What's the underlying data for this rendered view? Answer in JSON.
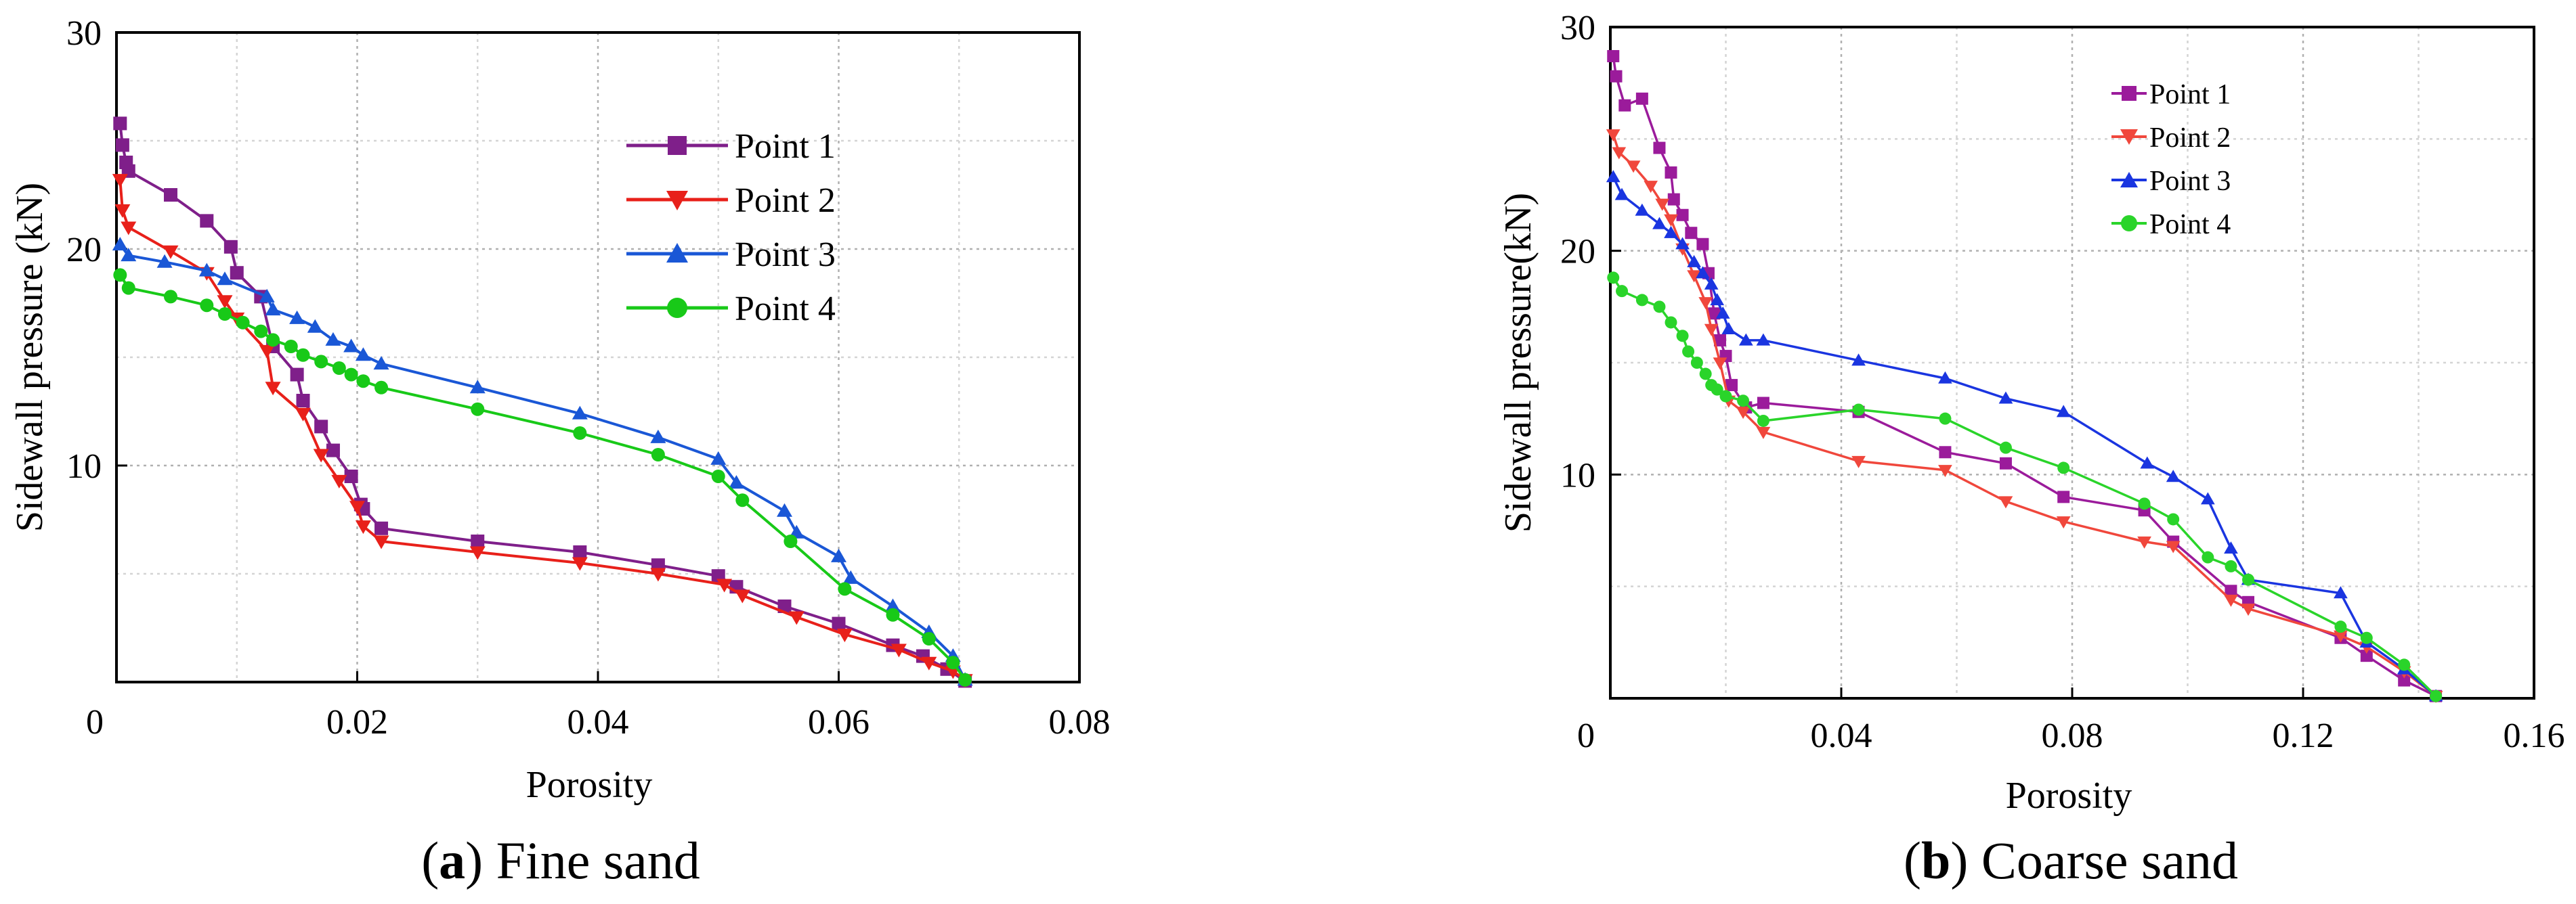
{
  "chart_data": [
    {
      "type": "line",
      "caption": {
        "open": "(",
        "letter": "a",
        "close": ")",
        "text": " Fine sand"
      },
      "xlabel": "Porosity",
      "ylabel": "Sidewall pressure (kN)",
      "xlim": [
        0,
        0.08
      ],
      "ylim": [
        0,
        30
      ],
      "xticks": [
        0,
        0.02,
        0.04,
        0.06,
        0.08
      ],
      "xtick_labels": [
        "0",
        "0.02",
        "0.04",
        "0.06",
        "0.08"
      ],
      "yticks": [
        10,
        20,
        30
      ],
      "ytick_labels": [
        "10",
        "20",
        "30"
      ],
      "grid": true,
      "grid_style": "dotted",
      "legend": "upper-middle",
      "series": [
        {
          "name": "Point 1",
          "color": "#7f1f8a",
          "marker": "square",
          "x": [
            0.0003,
            0.0005,
            0.0008,
            0.001,
            0.0045,
            0.0075,
            0.0095,
            0.01,
            0.012,
            0.013,
            0.015,
            0.0155,
            0.017,
            0.018,
            0.0195,
            0.0203,
            0.0205,
            0.022,
            0.03,
            0.0385,
            0.045,
            0.05,
            0.0515,
            0.0555,
            0.06,
            0.0645,
            0.067,
            0.069,
            0.0705
          ],
          "y": [
            25.8,
            24.8,
            24.0,
            23.6,
            22.5,
            21.3,
            20.1,
            18.9,
            17.8,
            15.5,
            14.2,
            13.0,
            11.8,
            10.7,
            9.5,
            8.2,
            8.0,
            7.1,
            6.5,
            6.0,
            5.4,
            4.9,
            4.4,
            3.5,
            2.7,
            1.7,
            1.2,
            0.6,
            0.05
          ]
        },
        {
          "name": "Point 2",
          "color": "#e8201a",
          "marker": "triangle-down",
          "x": [
            0.0003,
            0.0005,
            0.001,
            0.0045,
            0.0075,
            0.009,
            0.01,
            0.0125,
            0.013,
            0.0155,
            0.017,
            0.0185,
            0.02,
            0.0205,
            0.022,
            0.03,
            0.0385,
            0.045,
            0.0505,
            0.052,
            0.0565,
            0.0605,
            0.065,
            0.0675,
            0.0695,
            0.0705
          ],
          "y": [
            23.2,
            21.8,
            21.0,
            19.9,
            18.9,
            17.6,
            16.8,
            15.3,
            13.6,
            12.4,
            10.5,
            9.3,
            8.1,
            7.2,
            6.5,
            6.0,
            5.5,
            5.0,
            4.5,
            4.0,
            3.0,
            2.2,
            1.5,
            0.9,
            0.5,
            0.1
          ]
        },
        {
          "name": "Point 3",
          "color": "#1a57d6",
          "marker": "triangle-up",
          "x": [
            0.0003,
            0.001,
            0.004,
            0.0075,
            0.009,
            0.0125,
            0.013,
            0.015,
            0.0165,
            0.018,
            0.0195,
            0.0205,
            0.022,
            0.03,
            0.0385,
            0.045,
            0.05,
            0.0515,
            0.0555,
            0.0565,
            0.06,
            0.061,
            0.0645,
            0.0675,
            0.0695,
            0.0705
          ],
          "y": [
            20.2,
            19.7,
            19.4,
            19.0,
            18.6,
            17.8,
            17.2,
            16.8,
            16.4,
            15.8,
            15.5,
            15.1,
            14.7,
            13.6,
            12.4,
            11.3,
            10.3,
            9.2,
            7.9,
            6.9,
            5.8,
            4.8,
            3.5,
            2.3,
            1.2,
            0.1
          ]
        },
        {
          "name": "Point 4",
          "color": "#18c918",
          "marker": "circle",
          "x": [
            0.0003,
            0.001,
            0.0045,
            0.0075,
            0.009,
            0.0105,
            0.012,
            0.013,
            0.0145,
            0.0155,
            0.017,
            0.0185,
            0.0195,
            0.0205,
            0.022,
            0.03,
            0.0385,
            0.045,
            0.05,
            0.052,
            0.056,
            0.0605,
            0.0645,
            0.0675,
            0.0695,
            0.0705
          ],
          "y": [
            18.8,
            18.2,
            17.8,
            17.4,
            17.0,
            16.6,
            16.2,
            15.8,
            15.5,
            15.1,
            14.8,
            14.5,
            14.2,
            13.9,
            13.6,
            12.6,
            11.5,
            10.5,
            9.5,
            8.4,
            6.5,
            4.3,
            3.1,
            2.0,
            0.9,
            0.1
          ]
        }
      ]
    },
    {
      "type": "line",
      "caption": {
        "open": "(",
        "letter": "b",
        "close": ")",
        "text": " Coarse sand"
      },
      "xlabel": "Porosity",
      "ylabel": "Sidewall pressure(kN)",
      "xlim": [
        0,
        0.16
      ],
      "ylim": [
        0,
        30
      ],
      "xticks": [
        0,
        0.04,
        0.08,
        0.12,
        0.16
      ],
      "xtick_labels": [
        "0",
        "0.04",
        "0.08",
        "0.12",
        "0.16"
      ],
      "yticks": [
        10,
        20,
        30
      ],
      "ytick_labels": [
        "10",
        "20",
        "30"
      ],
      "grid": true,
      "grid_style": "dotted",
      "legend": "upper-left",
      "series": [
        {
          "name": "Point 1",
          "color": "#9b1b9b",
          "marker": "square",
          "x": [
            0.0005,
            0.001,
            0.0025,
            0.0055,
            0.0085,
            0.0105,
            0.011,
            0.0125,
            0.014,
            0.016,
            0.017,
            0.018,
            0.019,
            0.02,
            0.021,
            0.0235,
            0.0265,
            0.043,
            0.058,
            0.0685,
            0.0785,
            0.0925,
            0.0975,
            0.1075,
            0.1105,
            0.1265,
            0.131,
            0.1375,
            0.143
          ],
          "y": [
            28.7,
            27.8,
            26.5,
            26.8,
            24.6,
            23.5,
            22.3,
            21.6,
            20.8,
            20.3,
            19.0,
            17.2,
            16.0,
            15.3,
            14.0,
            13.0,
            13.2,
            12.8,
            11.0,
            10.5,
            9.0,
            8.4,
            7.0,
            4.8,
            4.3,
            2.7,
            1.9,
            0.8,
            0.1
          ]
        },
        {
          "name": "Point 2",
          "color": "#f0473c",
          "marker": "triangle-down",
          "x": [
            0.0005,
            0.0015,
            0.004,
            0.007,
            0.009,
            0.0105,
            0.0125,
            0.0145,
            0.0165,
            0.0175,
            0.019,
            0.0205,
            0.023,
            0.0265,
            0.043,
            0.058,
            0.0685,
            0.0785,
            0.0925,
            0.0975,
            0.1075,
            0.1105,
            0.1265,
            0.131,
            0.1375,
            0.143
          ],
          "y": [
            25.2,
            24.4,
            23.8,
            22.9,
            22.1,
            21.4,
            20.1,
            18.9,
            17.7,
            16.5,
            15.0,
            13.3,
            12.8,
            11.9,
            10.6,
            10.2,
            8.8,
            7.9,
            7.0,
            6.8,
            4.4,
            4.0,
            2.8,
            2.3,
            1.2,
            0.1
          ]
        },
        {
          "name": "Point 3",
          "color": "#1a35e0",
          "marker": "triangle-up",
          "x": [
            0.0005,
            0.002,
            0.0055,
            0.0085,
            0.0105,
            0.0125,
            0.0145,
            0.016,
            0.0175,
            0.0185,
            0.0195,
            0.0205,
            0.0235,
            0.0265,
            0.043,
            0.058,
            0.0685,
            0.0785,
            0.093,
            0.0975,
            0.1035,
            0.1075,
            0.1105,
            0.1265,
            0.131,
            0.1375,
            0.143
          ],
          "y": [
            23.3,
            22.5,
            21.8,
            21.2,
            20.8,
            20.3,
            19.5,
            19.0,
            18.5,
            17.8,
            17.2,
            16.5,
            16.0,
            16.0,
            15.1,
            14.3,
            13.4,
            12.8,
            10.5,
            9.9,
            8.9,
            6.7,
            5.3,
            4.7,
            2.5,
            1.3,
            0.1
          ]
        },
        {
          "name": "Point 4",
          "color": "#2ad42a",
          "marker": "circle",
          "x": [
            0.0005,
            0.002,
            0.0055,
            0.0085,
            0.0105,
            0.0125,
            0.0135,
            0.015,
            0.0165,
            0.0175,
            0.0185,
            0.02,
            0.023,
            0.0265,
            0.043,
            0.058,
            0.0685,
            0.0785,
            0.0925,
            0.0975,
            0.1035,
            0.1075,
            0.1105,
            0.1265,
            0.131,
            0.1375,
            0.143
          ],
          "y": [
            18.8,
            18.2,
            17.8,
            17.5,
            16.8,
            16.2,
            15.5,
            15.0,
            14.5,
            14.0,
            13.8,
            13.5,
            13.3,
            12.4,
            12.9,
            12.5,
            11.2,
            10.3,
            8.7,
            8.0,
            6.3,
            5.9,
            5.3,
            3.2,
            2.7,
            1.5,
            0.1
          ]
        }
      ]
    }
  ]
}
